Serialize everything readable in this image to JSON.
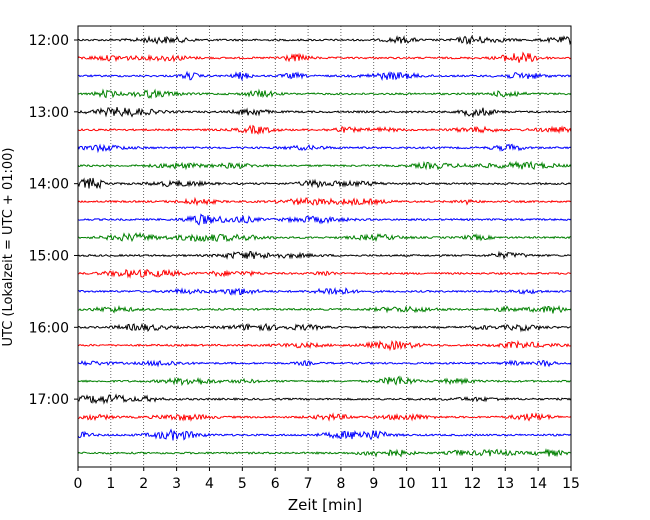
{
  "chart_data": {
    "type": "line",
    "title": "",
    "xlabel": "Zeit  [min]",
    "ylabel": "UTC (Lokalzeit = UTC + 01:00)",
    "xlim": [
      0,
      15
    ],
    "x_ticks": [
      0,
      1,
      2,
      3,
      4,
      5,
      6,
      7,
      8,
      9,
      10,
      11,
      12,
      13,
      14,
      15
    ],
    "y_ticks": [
      {
        "label": "12:00",
        "time": "12:00"
      },
      {
        "label": "13:00",
        "time": "13:00"
      },
      {
        "label": "14:00",
        "time": "14:00"
      },
      {
        "label": "15:00",
        "time": "15:00"
      },
      {
        "label": "16:00",
        "time": "16:00"
      },
      {
        "label": "17:00",
        "time": "17:00"
      }
    ],
    "vertical_grid": true,
    "grid_style": "dotted",
    "legend": "none",
    "row_colors": [
      "#000000",
      "#ff0000",
      "#0000ff",
      "#008000"
    ],
    "traces": [
      {
        "start": "12:00",
        "color": "#000000"
      },
      {
        "start": "12:15",
        "color": "#ff0000"
      },
      {
        "start": "12:30",
        "color": "#0000ff"
      },
      {
        "start": "12:45",
        "color": "#008000"
      },
      {
        "start": "13:00",
        "color": "#000000"
      },
      {
        "start": "13:15",
        "color": "#ff0000"
      },
      {
        "start": "13:30",
        "color": "#0000ff"
      },
      {
        "start": "13:45",
        "color": "#008000"
      },
      {
        "start": "14:00",
        "color": "#000000"
      },
      {
        "start": "14:15",
        "color": "#ff0000"
      },
      {
        "start": "14:30",
        "color": "#0000ff"
      },
      {
        "start": "14:45",
        "color": "#008000"
      },
      {
        "start": "15:00",
        "color": "#000000"
      },
      {
        "start": "15:15",
        "color": "#ff0000"
      },
      {
        "start": "15:30",
        "color": "#0000ff"
      },
      {
        "start": "15:45",
        "color": "#008000"
      },
      {
        "start": "16:00",
        "color": "#000000"
      },
      {
        "start": "16:15",
        "color": "#ff0000"
      },
      {
        "start": "16:30",
        "color": "#0000ff"
      },
      {
        "start": "16:45",
        "color": "#008000"
      },
      {
        "start": "17:00",
        "color": "#000000"
      },
      {
        "start": "17:15",
        "color": "#ff0000"
      },
      {
        "start": "17:30",
        "color": "#0000ff"
      },
      {
        "start": "17:45",
        "color": "#008000"
      }
    ]
  }
}
